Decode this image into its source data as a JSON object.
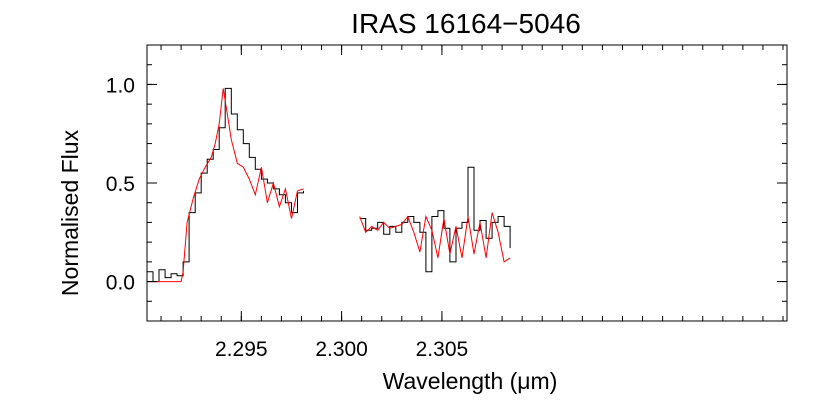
{
  "chart_data": {
    "type": "line",
    "title": "IRAS 16164−5046",
    "xlabel": "Wavelength (μm)",
    "ylabel": "Normalised Flux",
    "xlim": [
      2.2903,
      2.3222
    ],
    "ylim": [
      -0.2,
      1.2
    ],
    "x_ticks": [
      2.295,
      2.3,
      2.305
    ],
    "x_tick_labels": [
      "2.295",
      "2.300",
      "2.305"
    ],
    "y_ticks": [
      0.0,
      0.5,
      1.0
    ],
    "y_tick_labels": [
      "0.0",
      "0.5",
      "1.0"
    ],
    "grid": false,
    "legend": "none",
    "series": [
      {
        "role": "observed",
        "color": "#000000",
        "style": "steps",
        "segments": [
          {
            "x": [
              2.2903,
              2.2906,
              2.2909,
              2.2912,
              2.2915,
              2.2918,
              2.2921,
              2.2924,
              2.2927,
              2.293,
              2.2933,
              2.2936,
              2.2939,
              2.2942,
              2.2945,
              2.2948,
              2.2951,
              2.2954,
              2.2957,
              2.296,
              2.2963,
              2.2966,
              2.2969,
              2.2972,
              2.2975,
              2.2978,
              2.2981
            ],
            "y": [
              0.05,
              0.0,
              0.06,
              0.02,
              0.04,
              0.03,
              0.1,
              0.35,
              0.45,
              0.55,
              0.62,
              0.67,
              0.78,
              0.98,
              0.85,
              0.77,
              0.7,
              0.63,
              0.57,
              0.52,
              0.5,
              0.47,
              0.44,
              0.4,
              0.35,
              0.45,
              0.46
            ]
          },
          {
            "x": [
              2.3009,
              2.3012,
              2.3015,
              2.3018,
              2.3021,
              2.3024,
              2.3027,
              2.303,
              2.3033,
              2.3036,
              2.3039,
              2.3042,
              2.3045,
              2.3048,
              2.3051,
              2.3054,
              2.3057,
              2.306,
              2.3063,
              2.3066,
              2.3069,
              2.3072,
              2.3075,
              2.3078,
              2.3081,
              2.3084
            ],
            "y": [
              0.32,
              0.26,
              0.27,
              0.3,
              0.24,
              0.28,
              0.25,
              0.3,
              0.33,
              0.3,
              0.25,
              0.05,
              0.33,
              0.36,
              0.27,
              0.1,
              0.27,
              0.3,
              0.58,
              0.26,
              0.31,
              0.22,
              0.3,
              0.33,
              0.28,
              0.17
            ]
          }
        ]
      },
      {
        "role": "model",
        "color": "#ff0000",
        "style": "line",
        "segments": [
          {
            "x": [
              2.2903,
              2.291,
              2.292,
              2.2921,
              2.2923,
              2.2926,
              2.2929,
              2.2932,
              2.2935,
              2.2937,
              2.2939,
              2.2941,
              2.2943,
              2.2945,
              2.2948,
              2.2951,
              2.2954,
              2.2957,
              2.296,
              2.2963,
              2.2966,
              2.2969,
              2.2972,
              2.2975,
              2.2978,
              2.2981
            ],
            "y": [
              0.0,
              0.0,
              0.0,
              0.05,
              0.3,
              0.42,
              0.52,
              0.58,
              0.63,
              0.7,
              0.8,
              0.98,
              0.85,
              0.72,
              0.6,
              0.58,
              0.52,
              0.44,
              0.58,
              0.4,
              0.5,
              0.38,
              0.47,
              0.32,
              0.46,
              0.47
            ]
          },
          {
            "x": [
              2.3009,
              2.3012,
              2.3015,
              2.3018,
              2.3021,
              2.3024,
              2.3027,
              2.303,
              2.3033,
              2.3036,
              2.3039,
              2.3042,
              2.3045,
              2.3048,
              2.3051,
              2.3054,
              2.3057,
              2.306,
              2.3063,
              2.3066,
              2.3069,
              2.3072,
              2.3075,
              2.3078,
              2.3081,
              2.3084
            ],
            "y": [
              0.33,
              0.25,
              0.28,
              0.26,
              0.3,
              0.27,
              0.28,
              0.29,
              0.33,
              0.25,
              0.15,
              0.33,
              0.26,
              0.12,
              0.32,
              0.14,
              0.28,
              0.12,
              0.33,
              0.14,
              0.3,
              0.12,
              0.35,
              0.25,
              0.1,
              0.12
            ]
          }
        ]
      }
    ]
  }
}
